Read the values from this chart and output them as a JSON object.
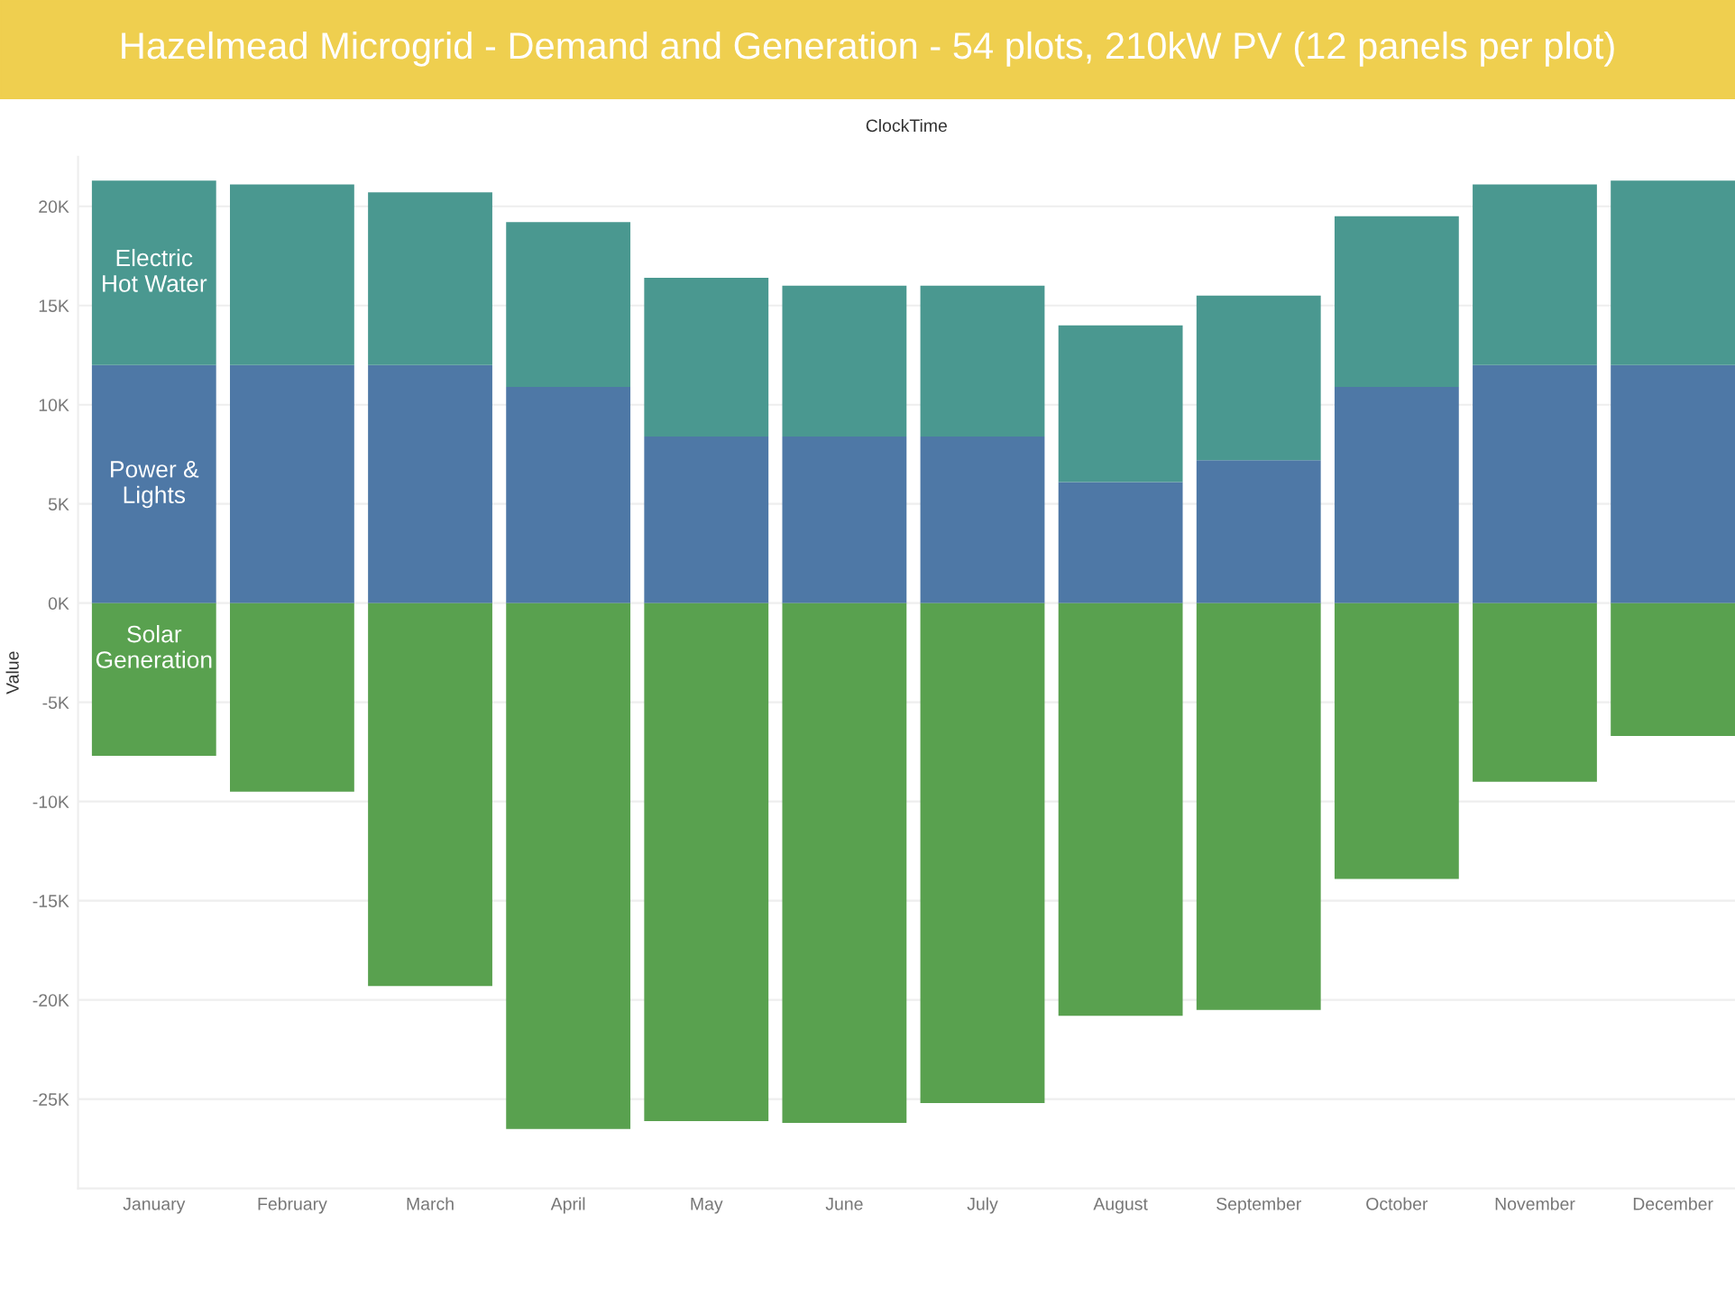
{
  "chart_data": {
    "type": "bar",
    "title": "Hazelmead Microgrid - Demand and Generation - 54 plots, 210kW PV (12 panels per plot)",
    "xlabel": "ClockTime",
    "ylabel": "Value",
    "categories": [
      "January",
      "February",
      "March",
      "April",
      "May",
      "June",
      "July",
      "August",
      "September",
      "October",
      "November",
      "December"
    ],
    "stacked": true,
    "series": [
      {
        "name": "Power &\nLights",
        "color": "#4e78a6",
        "values": [
          12000,
          12000,
          12000,
          10900,
          8400,
          8400,
          8400,
          6100,
          7200,
          10900,
          12000,
          12000
        ]
      },
      {
        "name": "Electric\nHot Water",
        "color": "#4a9890",
        "values": [
          9300,
          9100,
          8700,
          8300,
          8000,
          7600,
          7600,
          7900,
          8300,
          8600,
          9100,
          9300
        ]
      },
      {
        "name": "Solar\nGeneration",
        "color": "#59a14f",
        "values": [
          -7700,
          -9500,
          -19300,
          -26500,
          -26100,
          -26200,
          -25200,
          -20800,
          -20500,
          -13900,
          -9000,
          -6700
        ]
      }
    ],
    "ylim": [
      -29500,
      22500
    ],
    "yticks": [
      {
        "value": -25000,
        "label": "-25K"
      },
      {
        "value": -20000,
        "label": "-20K"
      },
      {
        "value": -15000,
        "label": "-15K"
      },
      {
        "value": -10000,
        "label": "-10K"
      },
      {
        "value": -5000,
        "label": "-5K"
      },
      {
        "value": 0,
        "label": "0K"
      },
      {
        "value": 5000,
        "label": "5K"
      },
      {
        "value": 10000,
        "label": "10K"
      },
      {
        "value": 15000,
        "label": "15K"
      },
      {
        "value": 20000,
        "label": "20K"
      }
    ],
    "grid": "y",
    "legend": false
  }
}
